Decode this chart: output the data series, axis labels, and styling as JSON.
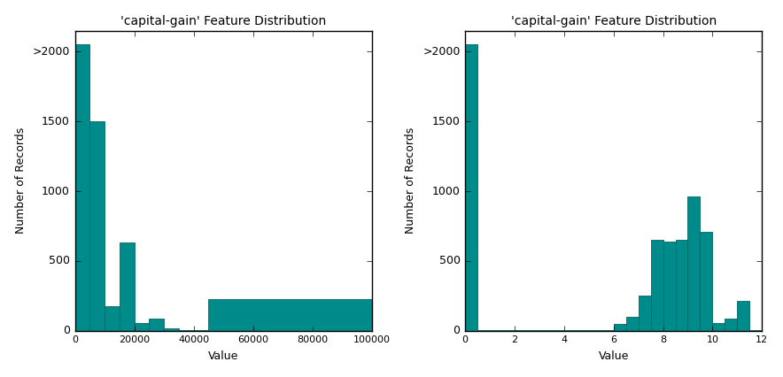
{
  "title": "'capital-gain' Feature Distribution",
  "xlabel": "Value",
  "ylabel": "Number of Records",
  "bar_color": "#008B8B",
  "bar_edgecolor": "#006666",
  "left_bin_edges": [
    0,
    5000,
    10000,
    15000,
    20000,
    25000,
    30000,
    35000,
    40000,
    45000,
    100000
  ],
  "left_heights": [
    2050,
    1500,
    175,
    630,
    55,
    85,
    15,
    5,
    5,
    225
  ],
  "right_bin_edges": [
    0,
    0.5,
    6.0,
    6.5,
    7.0,
    7.5,
    8.0,
    8.5,
    9.0,
    9.5,
    10.0,
    10.5,
    11.0,
    11.5,
    12.0
  ],
  "right_heights": [
    2050,
    5,
    50,
    100,
    255,
    650,
    640,
    650,
    960,
    710,
    55,
    90,
    215,
    5
  ],
  "ylim": [
    0,
    2150
  ],
  "yticks": [
    0,
    500,
    1000,
    1500,
    2000
  ],
  "ytick_labels": [
    "0",
    "500",
    "1000",
    "1500",
    ">2000"
  ],
  "left_xlim": [
    0,
    100000
  ],
  "right_xlim": [
    0,
    12
  ],
  "left_xticks": [
    0,
    20000,
    40000,
    60000,
    80000,
    100000
  ],
  "left_xtick_labels": [
    "0",
    "20000",
    "40000",
    "60000",
    "80000",
    "100000"
  ],
  "right_xticks": [
    0,
    2,
    4,
    6,
    8,
    10,
    12
  ],
  "right_xtick_labels": [
    "0",
    "2",
    "4",
    "6",
    "8",
    "10",
    "12"
  ],
  "figsize": [
    8.84,
    4.26
  ],
  "dpi": 100
}
